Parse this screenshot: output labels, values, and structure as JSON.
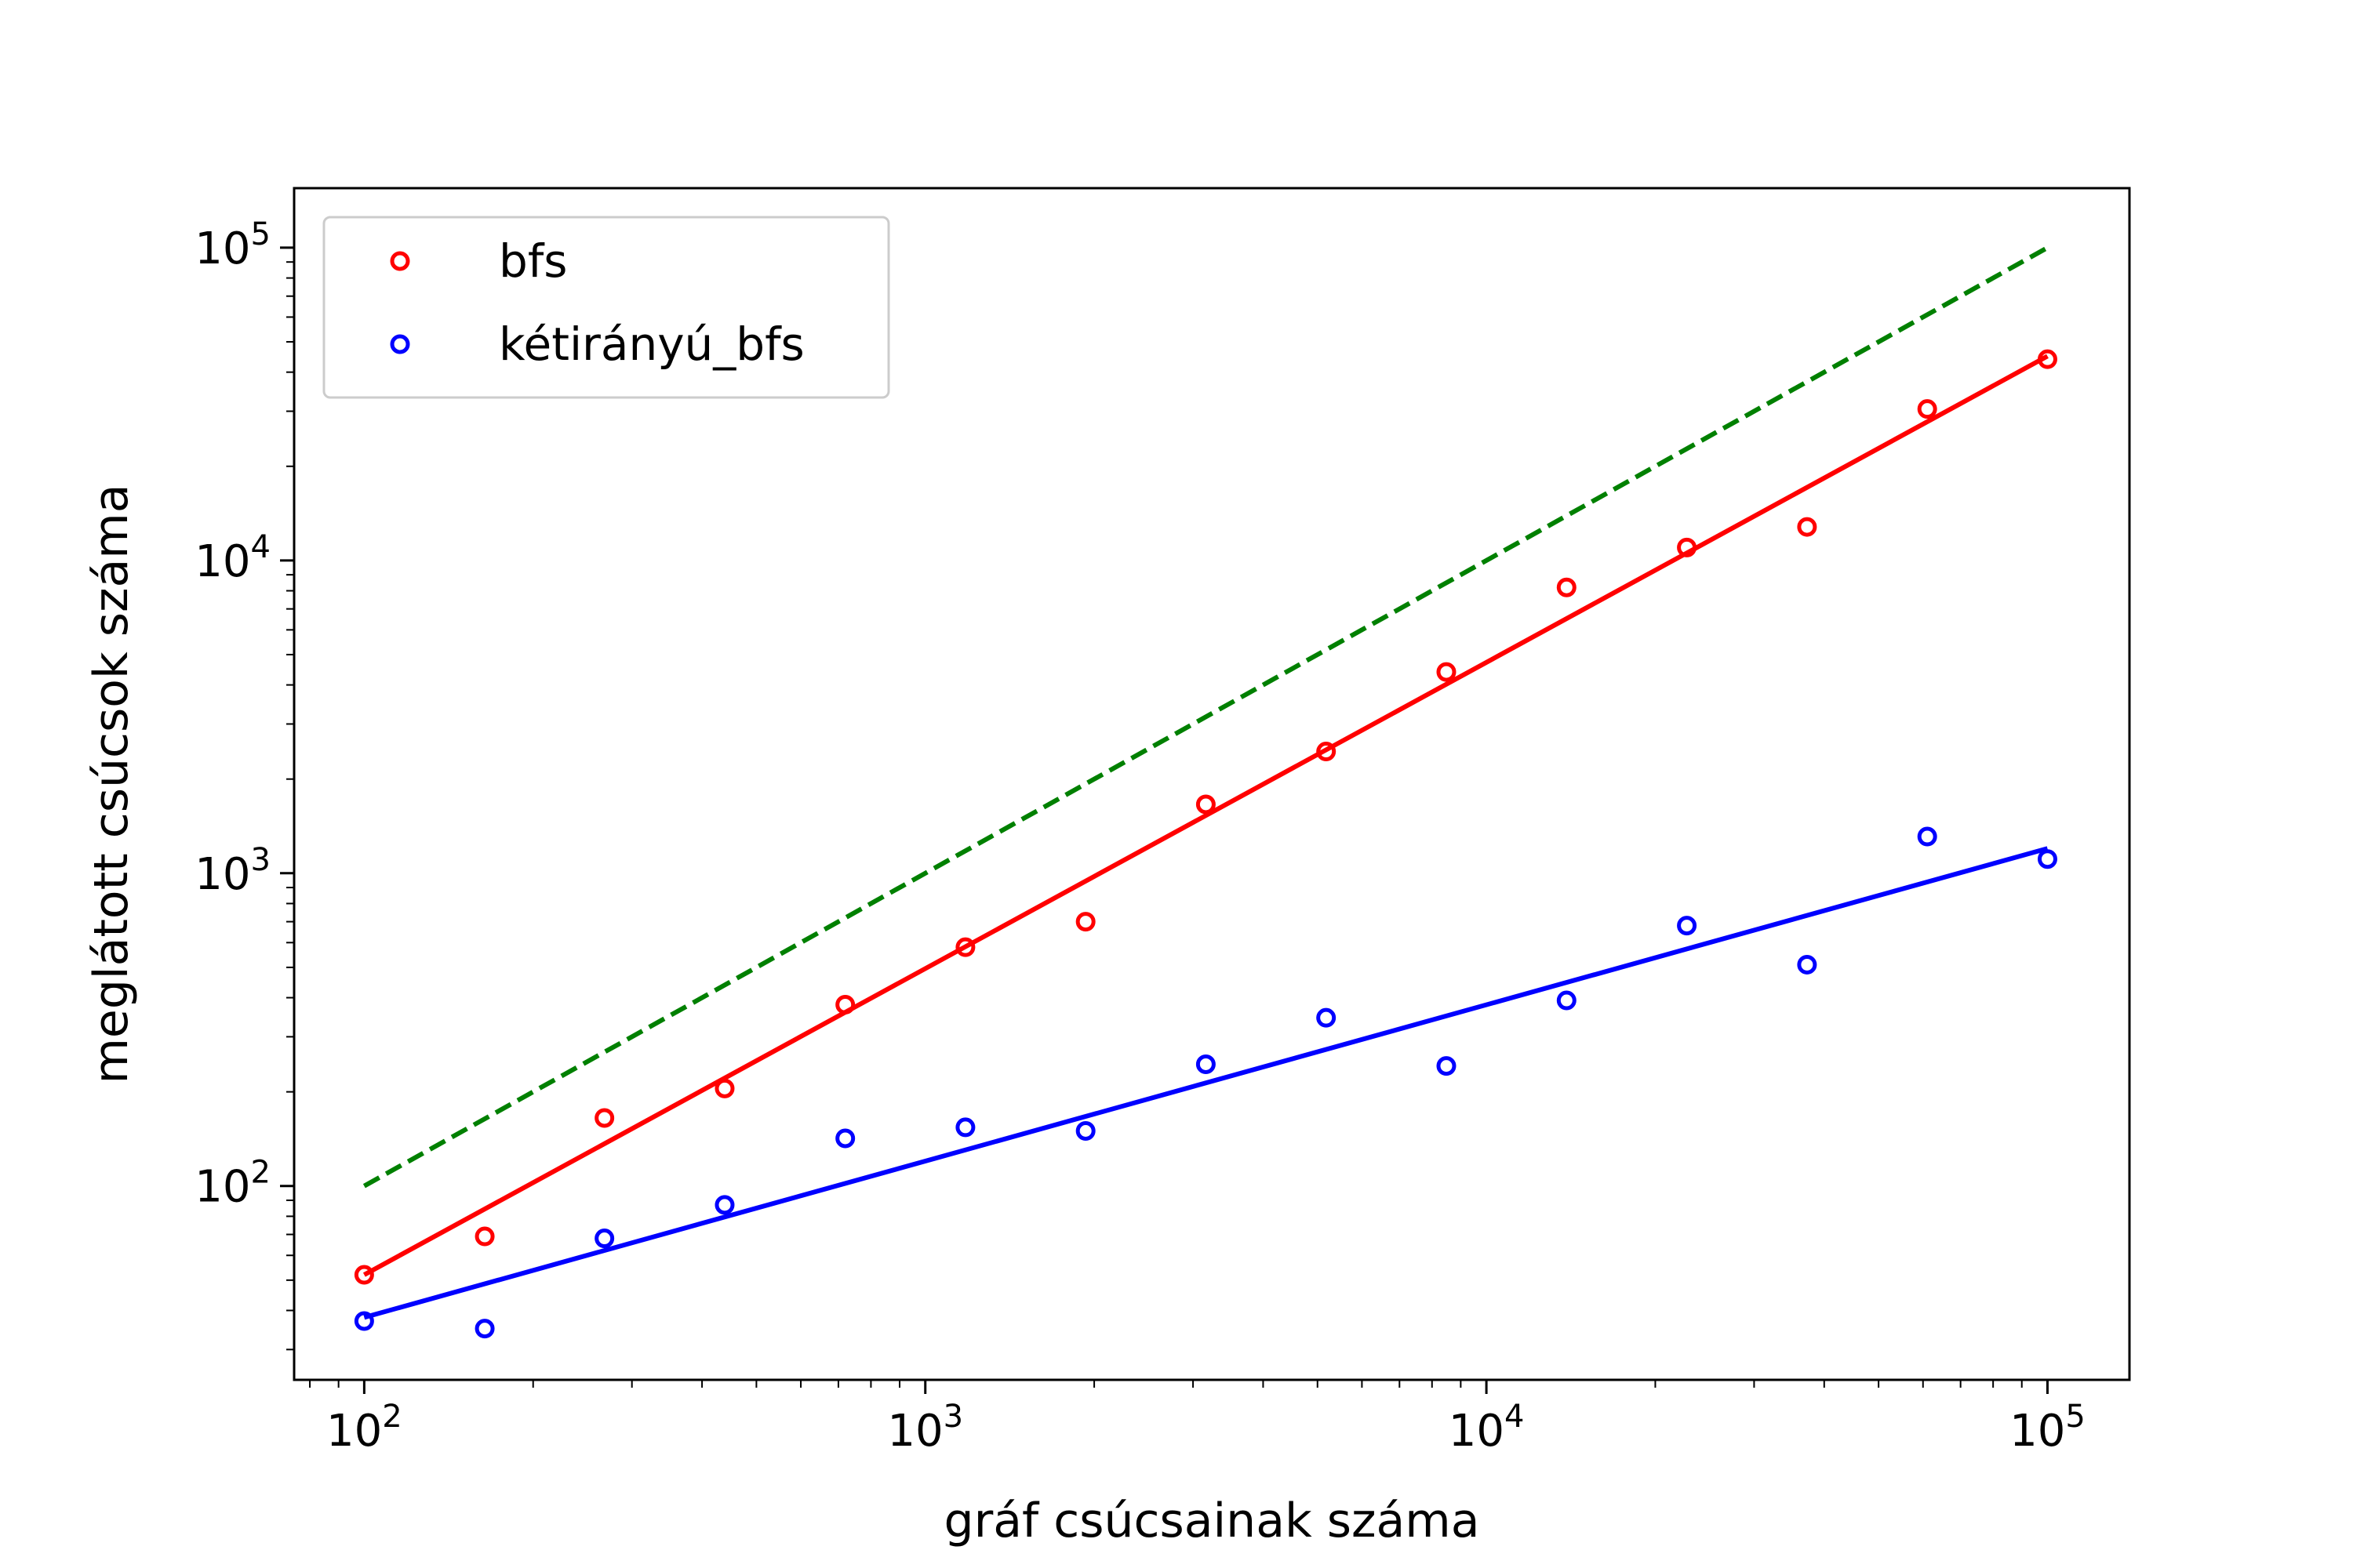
{
  "chart_data": {
    "type": "scatter",
    "title": "",
    "xlabel": "gráf csúcsainak száma",
    "ylabel": "meglátott csúcsok száma",
    "xscale": "log",
    "yscale": "log",
    "xlim": [
      75,
      140000
    ],
    "ylim": [
      24,
      155000
    ],
    "grid": false,
    "legend_position": "top-left",
    "x_ticks": [
      {
        "value": 100,
        "base": "10",
        "exp": "2"
      },
      {
        "value": 1000,
        "base": "10",
        "exp": "3"
      },
      {
        "value": 10000,
        "base": "10",
        "exp": "4"
      },
      {
        "value": 100000,
        "base": "10",
        "exp": "5"
      }
    ],
    "y_ticks": [
      {
        "value": 100,
        "base": "10",
        "exp": "2"
      },
      {
        "value": 1000,
        "base": "10",
        "exp": "3"
      },
      {
        "value": 10000,
        "base": "10",
        "exp": "4"
      },
      {
        "value": 100000,
        "base": "10",
        "exp": "5"
      }
    ],
    "x": [
      100,
      164,
      268,
      439,
      720,
      1179,
      1931,
      3162,
      5179,
      8483,
      13895,
      22758,
      37276,
      61054,
      100000
    ],
    "series": [
      {
        "name": "bfs",
        "color": "#ff0000",
        "marker": "circle-open",
        "values": [
          52,
          69,
          165,
          205,
          380,
          580,
          700,
          1660,
          2450,
          4400,
          8200,
          11000,
          12800,
          30500,
          44000
        ],
        "fit": {
          "x": [
            100,
            100000
          ],
          "y": [
            52,
            45000
          ],
          "color": "#ff0000",
          "style": "solid"
        }
      },
      {
        "name": "kétirányú_bfs",
        "color": "#0000ff",
        "marker": "circle-open",
        "values": [
          37,
          35,
          68,
          87,
          142,
          154,
          150,
          245,
          345,
          242,
          392,
          680,
          510,
          1310,
          1110
        ],
        "fit": {
          "x": [
            100,
            100000
          ],
          "y": [
            38,
            1200
          ],
          "color": "#0000ff",
          "style": "solid"
        }
      }
    ],
    "reference_line": {
      "x": [
        100,
        100000
      ],
      "y": [
        100,
        100000
      ],
      "color": "#008000",
      "style": "dashed"
    }
  }
}
